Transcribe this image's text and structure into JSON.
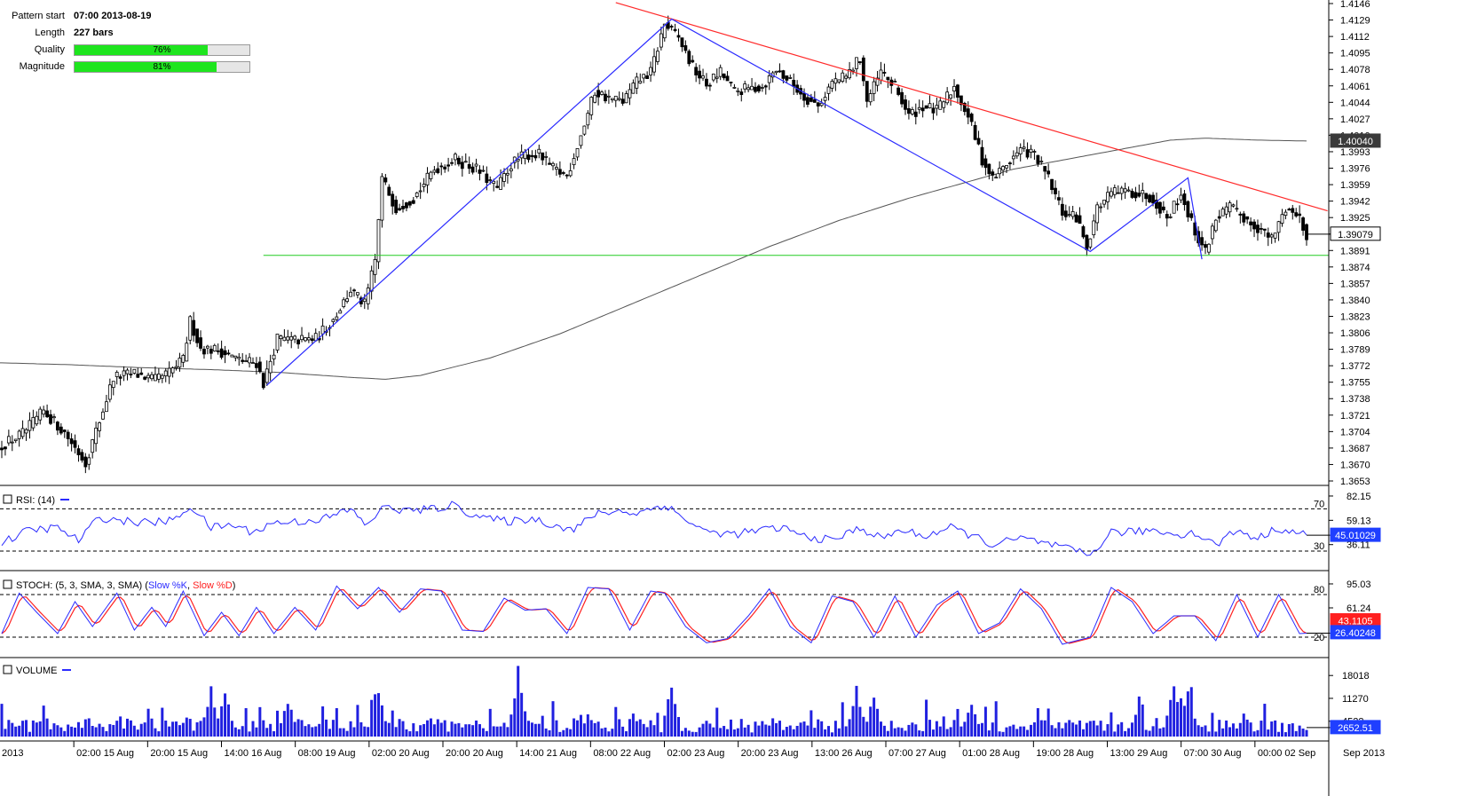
{
  "pattern_info": {
    "pattern_start_label": "Pattern start",
    "pattern_start_value": "07:00 2013-08-19",
    "length_label": "Length",
    "length_value": "227 bars",
    "quality_label": "Quality",
    "quality_pct": 76,
    "quality_text": "76%",
    "magnitude_label": "Magnitude",
    "magnitude_pct": 81,
    "magnitude_text": "81%"
  },
  "colors": {
    "candle_up": "#ffffff",
    "candle_down": "#000000",
    "pattern_line": "#2b2bff",
    "resistance_line": "#ff2a2a",
    "support_line": "#22cc22",
    "moving_average": "#555555",
    "rsi_line": "#2b2bff",
    "stoch_k": "#2b2bff",
    "stoch_d": "#ff2020",
    "volume_bar": "#2020e0",
    "last_price_bg": "#3a3a3a",
    "indicator_value_bg": "#1f3fff",
    "stoch_d_value_bg": "#ff2020"
  },
  "chart_data": {
    "type": "candlestick",
    "x_labels": [
      "2013",
      "02:00 15 Aug",
      "20:00 15 Aug",
      "14:00 16 Aug",
      "08:00 19 Aug",
      "02:00 20 Aug",
      "20:00 20 Aug",
      "14:00 21 Aug",
      "08:00 22 Aug",
      "02:00 23 Aug",
      "20:00 23 Aug",
      "13:00 26 Aug",
      "07:00 27 Aug",
      "01:00 28 Aug",
      "19:00 28 Aug",
      "13:00 29 Aug",
      "07:00 30 Aug",
      "00:00 02 Sep",
      "Sep 2013"
    ],
    "price_axis_ticks": [
      "1.4146",
      "1.4129",
      "1.4112",
      "1.4095",
      "1.4078",
      "1.4061",
      "1.4044",
      "1.4027",
      "1.4010",
      "1.3993",
      "1.3976",
      "1.3959",
      "1.3942",
      "1.3925",
      "1.3908",
      "1.3891",
      "1.3874",
      "1.3857",
      "1.3840",
      "1.3823",
      "1.3806",
      "1.3789",
      "1.3772",
      "1.3755",
      "1.3738",
      "1.3721",
      "1.3704",
      "1.3687",
      "1.3670",
      "1.3653"
    ],
    "price_range": [
      1.3653,
      1.4146
    ],
    "last_price": "1.39079",
    "moving_average_value": "1.40040",
    "price_anchors": [
      {
        "bar": 0,
        "price": 1.369
      },
      {
        "bar": 6,
        "price": 1.3702
      },
      {
        "bar": 12,
        "price": 1.3725
      },
      {
        "bar": 18,
        "price": 1.3703
      },
      {
        "bar": 24,
        "price": 1.3672
      },
      {
        "bar": 28,
        "price": 1.3715
      },
      {
        "bar": 32,
        "price": 1.376
      },
      {
        "bar": 38,
        "price": 1.3764
      },
      {
        "bar": 44,
        "price": 1.3757
      },
      {
        "bar": 48,
        "price": 1.3765
      },
      {
        "bar": 52,
        "price": 1.3778
      },
      {
        "bar": 54,
        "price": 1.3818
      },
      {
        "bar": 57,
        "price": 1.379
      },
      {
        "bar": 62,
        "price": 1.3788
      },
      {
        "bar": 68,
        "price": 1.3778
      },
      {
        "bar": 73,
        "price": 1.3775
      },
      {
        "bar": 75,
        "price": 1.3754
      },
      {
        "bar": 79,
        "price": 1.38
      },
      {
        "bar": 84,
        "price": 1.3798
      },
      {
        "bar": 90,
        "price": 1.38
      },
      {
        "bar": 95,
        "price": 1.382
      },
      {
        "bar": 100,
        "price": 1.385
      },
      {
        "bar": 104,
        "price": 1.3835
      },
      {
        "bar": 107,
        "price": 1.388
      },
      {
        "bar": 109,
        "price": 1.3965
      },
      {
        "bar": 113,
        "price": 1.3935
      },
      {
        "bar": 118,
        "price": 1.3945
      },
      {
        "bar": 124,
        "price": 1.3975
      },
      {
        "bar": 130,
        "price": 1.3985
      },
      {
        "bar": 136,
        "price": 1.3975
      },
      {
        "bar": 142,
        "price": 1.3955
      },
      {
        "bar": 146,
        "price": 1.398
      },
      {
        "bar": 150,
        "price": 1.399
      },
      {
        "bar": 154,
        "price": 1.399
      },
      {
        "bar": 158,
        "price": 1.3975
      },
      {
        "bar": 162,
        "price": 1.3968
      },
      {
        "bar": 166,
        "price": 1.401
      },
      {
        "bar": 170,
        "price": 1.4055
      },
      {
        "bar": 174,
        "price": 1.4048
      },
      {
        "bar": 178,
        "price": 1.4045
      },
      {
        "bar": 182,
        "price": 1.4065
      },
      {
        "bar": 186,
        "price": 1.4075
      },
      {
        "bar": 190,
        "price": 1.4125
      },
      {
        "bar": 194,
        "price": 1.411
      },
      {
        "bar": 198,
        "price": 1.408
      },
      {
        "bar": 202,
        "price": 1.4062
      },
      {
        "bar": 206,
        "price": 1.4075
      },
      {
        "bar": 210,
        "price": 1.4055
      },
      {
        "bar": 214,
        "price": 1.4058
      },
      {
        "bar": 218,
        "price": 1.406
      },
      {
        "bar": 222,
        "price": 1.4078
      },
      {
        "bar": 226,
        "price": 1.4065
      },
      {
        "bar": 230,
        "price": 1.405
      },
      {
        "bar": 234,
        "price": 1.404
      },
      {
        "bar": 238,
        "price": 1.4065
      },
      {
        "bar": 242,
        "price": 1.407
      },
      {
        "bar": 246,
        "price": 1.409
      },
      {
        "bar": 248,
        "price": 1.4045
      },
      {
        "bar": 252,
        "price": 1.4075
      },
      {
        "bar": 256,
        "price": 1.406
      },
      {
        "bar": 260,
        "price": 1.403
      },
      {
        "bar": 264,
        "price": 1.404
      },
      {
        "bar": 268,
        "price": 1.4035
      },
      {
        "bar": 273,
        "price": 1.406
      },
      {
        "bar": 277,
        "price": 1.403
      },
      {
        "bar": 281,
        "price": 1.3985
      },
      {
        "bar": 284,
        "price": 1.3965
      },
      {
        "bar": 288,
        "price": 1.398
      },
      {
        "bar": 292,
        "price": 1.3995
      },
      {
        "bar": 296,
        "price": 1.399
      },
      {
        "bar": 300,
        "price": 1.3965
      },
      {
        "bar": 304,
        "price": 1.393
      },
      {
        "bar": 308,
        "price": 1.3925
      },
      {
        "bar": 311,
        "price": 1.3895
      },
      {
        "bar": 314,
        "price": 1.3935
      },
      {
        "bar": 318,
        "price": 1.395
      },
      {
        "bar": 322,
        "price": 1.3952
      },
      {
        "bar": 326,
        "price": 1.395
      },
      {
        "bar": 330,
        "price": 1.3945
      },
      {
        "bar": 334,
        "price": 1.3925
      },
      {
        "bar": 338,
        "price": 1.395
      },
      {
        "bar": 342,
        "price": 1.391
      },
      {
        "bar": 345,
        "price": 1.389
      },
      {
        "bar": 348,
        "price": 1.3925
      },
      {
        "bar": 352,
        "price": 1.3935
      },
      {
        "bar": 356,
        "price": 1.3925
      },
      {
        "bar": 360,
        "price": 1.3915
      },
      {
        "bar": 364,
        "price": 1.3902
      },
      {
        "bar": 368,
        "price": 1.3935
      },
      {
        "bar": 372,
        "price": 1.3925
      },
      {
        "bar": 374,
        "price": 1.3908
      }
    ],
    "moving_average": [
      {
        "bar": 0,
        "price": 1.3775
      },
      {
        "bar": 20,
        "price": 1.3773
      },
      {
        "bar": 40,
        "price": 1.377
      },
      {
        "bar": 60,
        "price": 1.3768
      },
      {
        "bar": 80,
        "price": 1.3765
      },
      {
        "bar": 100,
        "price": 1.376
      },
      {
        "bar": 110,
        "price": 1.3758
      },
      {
        "bar": 120,
        "price": 1.3762
      },
      {
        "bar": 140,
        "price": 1.378
      },
      {
        "bar": 160,
        "price": 1.3805
      },
      {
        "bar": 180,
        "price": 1.3835
      },
      {
        "bar": 200,
        "price": 1.3865
      },
      {
        "bar": 220,
        "price": 1.3895
      },
      {
        "bar": 240,
        "price": 1.3922
      },
      {
        "bar": 260,
        "price": 1.3945
      },
      {
        "bar": 275,
        "price": 1.396
      },
      {
        "bar": 290,
        "price": 1.3975
      },
      {
        "bar": 305,
        "price": 1.3985
      },
      {
        "bar": 320,
        "price": 1.3995
      },
      {
        "bar": 335,
        "price": 1.4005
      },
      {
        "bar": 345,
        "price": 1.4007
      },
      {
        "bar": 360,
        "price": 1.4005
      },
      {
        "bar": 375,
        "price": 1.4004
      }
    ],
    "pattern_points": [
      {
        "bar": 76,
        "price": 1.3752
      },
      {
        "bar": 192,
        "price": 1.413
      },
      {
        "bar": 312,
        "price": 1.389
      },
      {
        "bar": 340,
        "price": 1.3966
      },
      {
        "bar": 344,
        "price": 1.3882
      }
    ],
    "resistance_line": [
      {
        "bar": 176,
        "price": 1.4147
      },
      {
        "bar": 380,
        "price": 1.3932
      }
    ],
    "support_level": {
      "price": 1.3886,
      "from_bar": 75
    },
    "bar_count": 375
  },
  "rsi": {
    "label": "RSI: (14)",
    "level_high": "70",
    "level_low": "30",
    "axis_ticks": [
      "82.15",
      "59.13",
      "36.11"
    ],
    "current_value": "45.01029",
    "range": [
      14,
      88
    ],
    "anchors": [
      {
        "bar": 0,
        "v": 38
      },
      {
        "bar": 8,
        "v": 50
      },
      {
        "bar": 16,
        "v": 52
      },
      {
        "bar": 22,
        "v": 40
      },
      {
        "bar": 28,
        "v": 62
      },
      {
        "bar": 36,
        "v": 58
      },
      {
        "bar": 44,
        "v": 57
      },
      {
        "bar": 50,
        "v": 60
      },
      {
        "bar": 54,
        "v": 73
      },
      {
        "bar": 60,
        "v": 52
      },
      {
        "bar": 66,
        "v": 55
      },
      {
        "bar": 72,
        "v": 48
      },
      {
        "bar": 78,
        "v": 57
      },
      {
        "bar": 86,
        "v": 58
      },
      {
        "bar": 94,
        "v": 62
      },
      {
        "bar": 100,
        "v": 70
      },
      {
        "bar": 104,
        "v": 55
      },
      {
        "bar": 110,
        "v": 72
      },
      {
        "bar": 116,
        "v": 68
      },
      {
        "bar": 124,
        "v": 70
      },
      {
        "bar": 130,
        "v": 74
      },
      {
        "bar": 134,
        "v": 66
      },
      {
        "bar": 140,
        "v": 60
      },
      {
        "bar": 146,
        "v": 58
      },
      {
        "bar": 152,
        "v": 61
      },
      {
        "bar": 158,
        "v": 55
      },
      {
        "bar": 164,
        "v": 50
      },
      {
        "bar": 170,
        "v": 65
      },
      {
        "bar": 176,
        "v": 68
      },
      {
        "bar": 182,
        "v": 66
      },
      {
        "bar": 190,
        "v": 74
      },
      {
        "bar": 196,
        "v": 60
      },
      {
        "bar": 202,
        "v": 48
      },
      {
        "bar": 210,
        "v": 46
      },
      {
        "bar": 218,
        "v": 50
      },
      {
        "bar": 224,
        "v": 52
      },
      {
        "bar": 230,
        "v": 44
      },
      {
        "bar": 238,
        "v": 40
      },
      {
        "bar": 246,
        "v": 52
      },
      {
        "bar": 252,
        "v": 42
      },
      {
        "bar": 258,
        "v": 50
      },
      {
        "bar": 264,
        "v": 44
      },
      {
        "bar": 272,
        "v": 52
      },
      {
        "bar": 278,
        "v": 45
      },
      {
        "bar": 284,
        "v": 36
      },
      {
        "bar": 292,
        "v": 42
      },
      {
        "bar": 298,
        "v": 38
      },
      {
        "bar": 304,
        "v": 33
      },
      {
        "bar": 312,
        "v": 26
      },
      {
        "bar": 318,
        "v": 48
      },
      {
        "bar": 324,
        "v": 48
      },
      {
        "bar": 330,
        "v": 50
      },
      {
        "bar": 336,
        "v": 46
      },
      {
        "bar": 342,
        "v": 47
      },
      {
        "bar": 348,
        "v": 36
      },
      {
        "bar": 354,
        "v": 50
      },
      {
        "bar": 360,
        "v": 42
      },
      {
        "bar": 366,
        "v": 52
      },
      {
        "bar": 372,
        "v": 46
      },
      {
        "bar": 375,
        "v": 45
      }
    ]
  },
  "stoch": {
    "label_prefix": "STOCH: (5, 3, SMA, 3, SMA)",
    "k_label": "Slow %K",
    "d_label": "Slow %D",
    "level_high": "80",
    "level_low": "20",
    "axis_ticks": [
      "95.03",
      "61.24"
    ],
    "d_value": "43.1105",
    "k_value": "26.40248",
    "k_anchors": [
      {
        "bar": 0,
        "v": 25
      },
      {
        "bar": 5,
        "v": 82
      },
      {
        "bar": 10,
        "v": 55
      },
      {
        "bar": 16,
        "v": 25
      },
      {
        "bar": 21,
        "v": 70
      },
      {
        "bar": 26,
        "v": 35
      },
      {
        "bar": 33,
        "v": 82
      },
      {
        "bar": 38,
        "v": 30
      },
      {
        "bar": 43,
        "v": 62
      },
      {
        "bar": 47,
        "v": 35
      },
      {
        "bar": 52,
        "v": 85
      },
      {
        "bar": 58,
        "v": 22
      },
      {
        "bar": 63,
        "v": 55
      },
      {
        "bar": 68,
        "v": 22
      },
      {
        "bar": 73,
        "v": 62
      },
      {
        "bar": 78,
        "v": 25
      },
      {
        "bar": 84,
        "v": 62
      },
      {
        "bar": 90,
        "v": 30
      },
      {
        "bar": 96,
        "v": 92
      },
      {
        "bar": 102,
        "v": 60
      },
      {
        "bar": 108,
        "v": 90
      },
      {
        "bar": 114,
        "v": 55
      },
      {
        "bar": 120,
        "v": 88
      },
      {
        "bar": 126,
        "v": 85
      },
      {
        "bar": 132,
        "v": 30
      },
      {
        "bar": 138,
        "v": 28
      },
      {
        "bar": 144,
        "v": 75
      },
      {
        "bar": 150,
        "v": 58
      },
      {
        "bar": 156,
        "v": 60
      },
      {
        "bar": 162,
        "v": 25
      },
      {
        "bar": 168,
        "v": 90
      },
      {
        "bar": 174,
        "v": 88
      },
      {
        "bar": 180,
        "v": 30
      },
      {
        "bar": 186,
        "v": 85
      },
      {
        "bar": 190,
        "v": 82
      },
      {
        "bar": 196,
        "v": 35
      },
      {
        "bar": 202,
        "v": 12
      },
      {
        "bar": 208,
        "v": 18
      },
      {
        "bar": 214,
        "v": 50
      },
      {
        "bar": 220,
        "v": 88
      },
      {
        "bar": 226,
        "v": 35
      },
      {
        "bar": 232,
        "v": 12
      },
      {
        "bar": 238,
        "v": 78
      },
      {
        "bar": 244,
        "v": 70
      },
      {
        "bar": 250,
        "v": 20
      },
      {
        "bar": 256,
        "v": 78
      },
      {
        "bar": 262,
        "v": 20
      },
      {
        "bar": 268,
        "v": 65
      },
      {
        "bar": 274,
        "v": 85
      },
      {
        "bar": 280,
        "v": 25
      },
      {
        "bar": 286,
        "v": 40
      },
      {
        "bar": 292,
        "v": 88
      },
      {
        "bar": 298,
        "v": 60
      },
      {
        "bar": 304,
        "v": 10
      },
      {
        "bar": 312,
        "v": 20
      },
      {
        "bar": 318,
        "v": 90
      },
      {
        "bar": 324,
        "v": 70
      },
      {
        "bar": 330,
        "v": 25
      },
      {
        "bar": 336,
        "v": 50
      },
      {
        "bar": 342,
        "v": 50
      },
      {
        "bar": 348,
        "v": 15
      },
      {
        "bar": 354,
        "v": 80
      },
      {
        "bar": 360,
        "v": 20
      },
      {
        "bar": 366,
        "v": 80
      },
      {
        "bar": 372,
        "v": 25
      },
      {
        "bar": 375,
        "v": 26
      }
    ]
  },
  "volume": {
    "label": "VOLUME",
    "axis_ticks": [
      "18018",
      "11270",
      "4522"
    ],
    "current_value": "2652.51",
    "max": 22000,
    "peaks": [
      {
        "bar": 60,
        "v": 15000
      },
      {
        "bar": 64,
        "v": 14000
      },
      {
        "bar": 82,
        "v": 12000
      },
      {
        "bar": 108,
        "v": 14000
      },
      {
        "bar": 148,
        "v": 19000
      },
      {
        "bar": 192,
        "v": 16000
      },
      {
        "bar": 245,
        "v": 15000
      },
      {
        "bar": 250,
        "v": 13000
      },
      {
        "bar": 278,
        "v": 11000
      },
      {
        "bar": 336,
        "v": 16000
      },
      {
        "bar": 340,
        "v": 14000
      },
      {
        "bar": 356,
        "v": 7000
      }
    ]
  }
}
